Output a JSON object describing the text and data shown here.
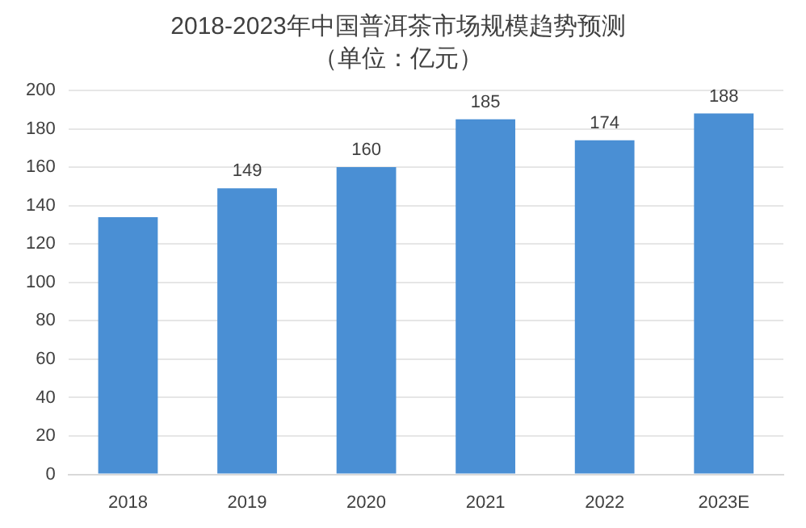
{
  "chart_data": {
    "type": "bar",
    "title": "2018-2023年中国普洱茶市场规模趋势预测",
    "subtitle": "（单位：亿元）",
    "categories": [
      "2018",
      "2019",
      "2020",
      "2021",
      "2022",
      "2023E"
    ],
    "values": [
      134,
      149,
      160,
      185,
      174,
      188
    ],
    "value_labels": [
      null,
      "149",
      "160",
      "185",
      "174",
      "188"
    ],
    "color": "#4a8fd4",
    "ylim": [
      0,
      200
    ],
    "yticks": [
      0,
      20,
      40,
      60,
      80,
      100,
      120,
      140,
      160,
      180,
      200
    ],
    "grid": "y",
    "legend": false
  }
}
